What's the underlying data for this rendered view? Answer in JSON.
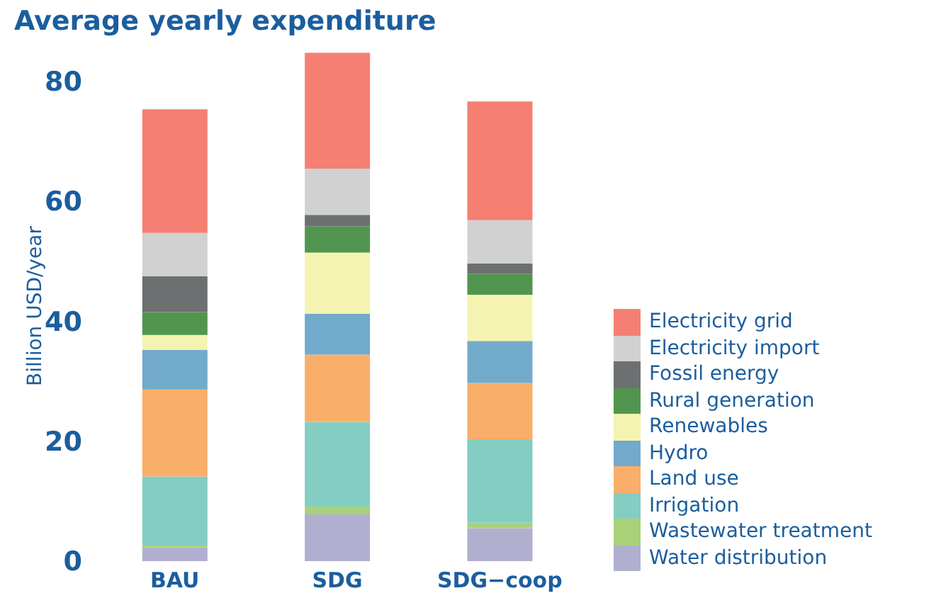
{
  "chart_data": {
    "type": "bar",
    "title": "Average yearly expenditure",
    "ylabel": "Billion USD/year",
    "categories": [
      "BAU",
      "SDG",
      "SDG−coop"
    ],
    "stacked": true,
    "ylim": [
      0,
      85
    ],
    "yticks": [
      0,
      20,
      40,
      60,
      80
    ],
    "grid": false,
    "legend": "right",
    "series": [
      {
        "name": "Water distribution",
        "color": "#b0afd0",
        "values": [
          2.3,
          7.8,
          5.5
        ]
      },
      {
        "name": "Wastewater treatment",
        "color": "#a9d17a",
        "values": [
          0.3,
          1.3,
          0.9
        ]
      },
      {
        "name": "Irrigation",
        "color": "#84cdc2",
        "values": [
          11.5,
          14.1,
          13.9
        ]
      },
      {
        "name": "Land use",
        "color": "#f9ae69",
        "values": [
          14.5,
          11.2,
          9.4
        ]
      },
      {
        "name": "Hydro",
        "color": "#72aacb",
        "values": [
          6.6,
          6.8,
          7.0
        ]
      },
      {
        "name": "Renewables",
        "color": "#f5f3b1",
        "values": [
          2.5,
          10.2,
          7.7
        ]
      },
      {
        "name": "Rural generation",
        "color": "#52954f",
        "values": [
          3.8,
          4.4,
          3.5
        ]
      },
      {
        "name": "Fossil energy",
        "color": "#6d7071",
        "values": [
          6.0,
          1.9,
          1.7
        ]
      },
      {
        "name": "Electricity import",
        "color": "#d0d1d0",
        "values": [
          7.2,
          7.7,
          7.2
        ]
      },
      {
        "name": "Electricity grid",
        "color": "#f47f72",
        "values": [
          20.6,
          19.3,
          19.8
        ]
      }
    ]
  }
}
